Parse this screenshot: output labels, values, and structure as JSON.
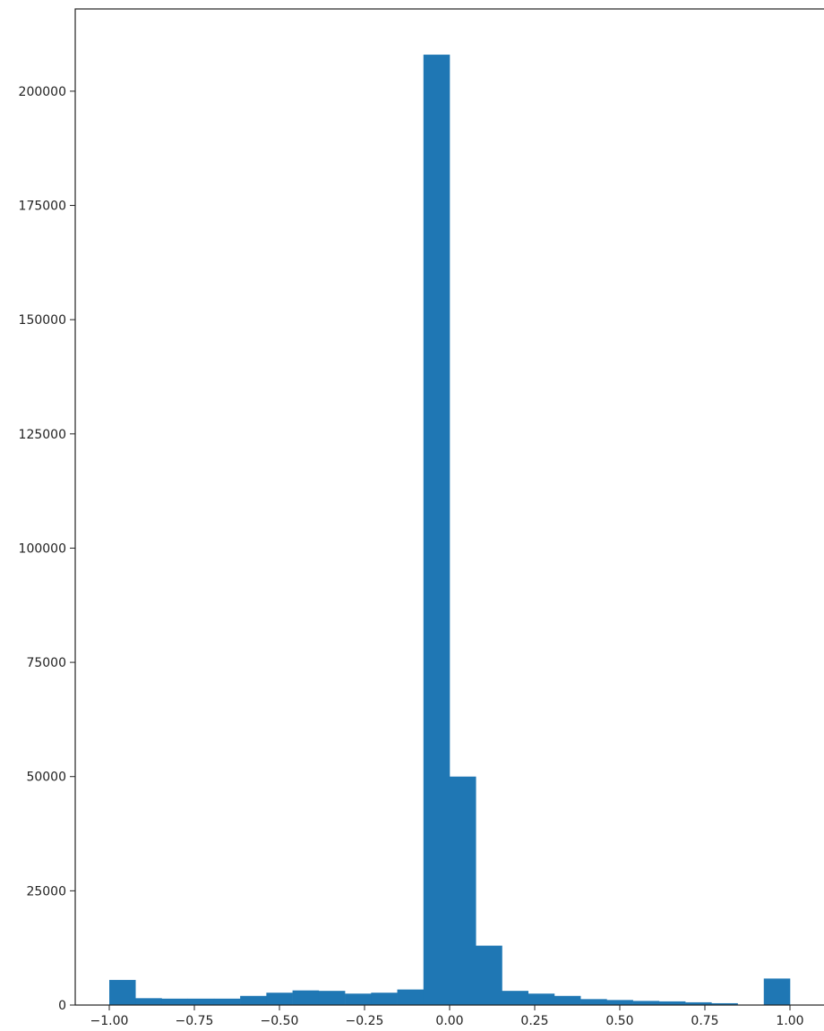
{
  "chart_data": {
    "type": "bar",
    "subtype": "histogram",
    "title": "",
    "xlabel": "",
    "ylabel": "",
    "bins": 26,
    "bin_range": [
      -1.0,
      1.0
    ],
    "values": [
      5500,
      1500,
      1400,
      1400,
      1400,
      2000,
      2700,
      3200,
      3100,
      2500,
      2700,
      3400,
      208000,
      50000,
      13000,
      3100,
      2500,
      2000,
      1300,
      1100,
      900,
      800,
      600,
      400,
      0,
      5800
    ],
    "xlim": [
      -1.1,
      1.1
    ],
    "ylim": [
      0,
      218000
    ],
    "xticks": [
      -1.0,
      -0.75,
      -0.5,
      -0.25,
      0.0,
      0.25,
      0.5,
      0.75,
      1.0
    ],
    "xtick_labels": [
      "−1.00",
      "−0.75",
      "−0.50",
      "−0.25",
      "0.00",
      "0.25",
      "0.50",
      "0.75",
      "1.00"
    ],
    "yticks": [
      0,
      25000,
      50000,
      75000,
      100000,
      125000,
      150000,
      175000,
      200000
    ],
    "ytick_labels": [
      "0",
      "25000",
      "50000",
      "75000",
      "100000",
      "125000",
      "150000",
      "175000",
      "200000"
    ],
    "grid": false,
    "legend": "none",
    "colors": {
      "bar": "#1f77b4",
      "axis": "#222222",
      "background": "#ffffff"
    }
  }
}
